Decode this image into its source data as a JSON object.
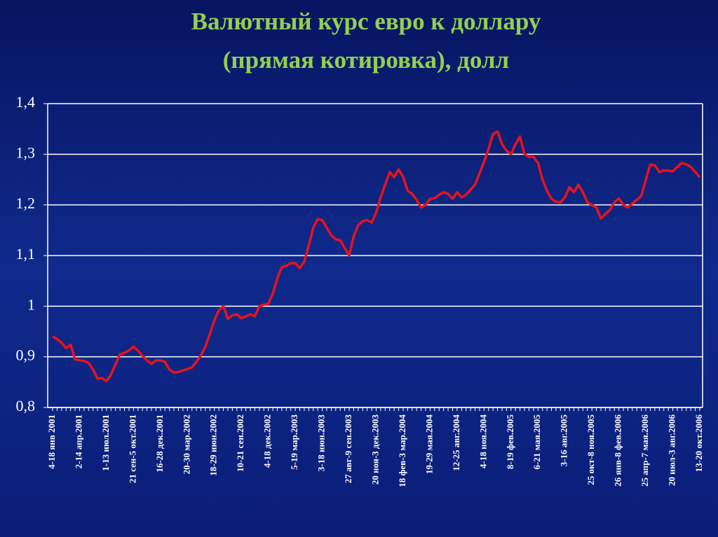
{
  "chart_data": {
    "type": "line",
    "title": "Валютный курс евро к доллару",
    "subtitle": "(прямая котировка), долл",
    "categories": [
      "4-18 янв 2001",
      null,
      null,
      null,
      null,
      null,
      "2-14 апр.2001",
      null,
      null,
      null,
      null,
      null,
      "1-13 июл.2001",
      null,
      null,
      null,
      null,
      null,
      "21 сен-5 окт.2001",
      null,
      null,
      null,
      null,
      null,
      "16-28 дек.2001",
      null,
      null,
      null,
      null,
      null,
      "20-30 мар.2002",
      null,
      null,
      null,
      null,
      null,
      "18-29 июн.2002",
      null,
      null,
      null,
      null,
      null,
      "10-21 сен.2002",
      null,
      null,
      null,
      null,
      null,
      "4-18 дек.2002",
      null,
      null,
      null,
      null,
      null,
      "5-19 мар.2003",
      null,
      null,
      null,
      null,
      null,
      "3-18 июн.2003",
      null,
      null,
      null,
      null,
      null,
      "27 авг-9 сен.2003",
      null,
      null,
      null,
      null,
      null,
      "20 ноя-3 дек.2003",
      null,
      null,
      null,
      null,
      null,
      "18 фев-3 мар.2004",
      null,
      null,
      null,
      null,
      null,
      "19-29 мая.2004",
      null,
      null,
      null,
      null,
      null,
      "12-25 авг.2004",
      null,
      null,
      null,
      null,
      null,
      "4-18 ноя.2004",
      null,
      null,
      null,
      null,
      null,
      "8-19 фев.2005",
      null,
      null,
      null,
      null,
      null,
      "6-21 мая.2005",
      null,
      null,
      null,
      null,
      null,
      "3-16 авг.2005",
      null,
      null,
      null,
      null,
      null,
      "25 окт-8 ноя.2005",
      null,
      null,
      null,
      null,
      null,
      "26 янв-8 фев.2006",
      null,
      null,
      null,
      null,
      null,
      "25 апр-7 мая.2006",
      null,
      null,
      null,
      null,
      null,
      "20 июл-3 авг.2006",
      null,
      null,
      null,
      null,
      null,
      "13-20 окт.2006"
    ],
    "series": [
      {
        "color": "#e8121c",
        "values": [
          0.94,
          0.935,
          0.928,
          0.917,
          0.924,
          0.895,
          0.893,
          0.892,
          0.888,
          0.875,
          0.857,
          0.858,
          0.852,
          0.865,
          0.885,
          0.905,
          0.908,
          0.913,
          0.92,
          0.912,
          0.902,
          0.893,
          0.886,
          0.893,
          0.893,
          0.89,
          0.875,
          0.869,
          0.87,
          0.873,
          0.876,
          0.879,
          0.89,
          0.903,
          0.92,
          0.945,
          0.972,
          0.992,
          1.0,
          0.975,
          0.982,
          0.984,
          0.976,
          0.98,
          0.984,
          0.98,
          1.0,
          1.003,
          1.005,
          1.025,
          1.055,
          1.077,
          1.08,
          1.085,
          1.085,
          1.075,
          1.088,
          1.12,
          1.155,
          1.172,
          1.17,
          1.155,
          1.14,
          1.132,
          1.13,
          1.115,
          1.1,
          1.138,
          1.16,
          1.168,
          1.17,
          1.165,
          1.185,
          1.215,
          1.24,
          1.265,
          1.255,
          1.27,
          1.255,
          1.228,
          1.222,
          1.21,
          1.195,
          1.2,
          1.212,
          1.213,
          1.22,
          1.225,
          1.222,
          1.212,
          1.225,
          1.215,
          1.22,
          1.23,
          1.24,
          1.262,
          1.285,
          1.31,
          1.34,
          1.345,
          1.32,
          1.307,
          1.3,
          1.32,
          1.335,
          1.3,
          1.295,
          1.295,
          1.283,
          1.25,
          1.228,
          1.212,
          1.206,
          1.205,
          1.215,
          1.235,
          1.225,
          1.24,
          1.225,
          1.205,
          1.2,
          1.195,
          1.173,
          1.182,
          1.19,
          1.205,
          1.213,
          1.2,
          1.195,
          1.203,
          1.21,
          1.218,
          1.25,
          1.28,
          1.278,
          1.265,
          1.268,
          1.268,
          1.266,
          1.275,
          1.283,
          1.28,
          1.275,
          1.265,
          1.255
        ]
      }
    ],
    "ylim": [
      0.8,
      1.4
    ],
    "yticks": [
      {
        "value": 0.8,
        "label": "0,8"
      },
      {
        "value": 0.9,
        "label": "0,9"
      },
      1,
      {
        "value": 1.1,
        "label": "1,1"
      },
      {
        "value": 1.2,
        "label": "1,2"
      },
      {
        "value": 1.3,
        "label": "1,3"
      },
      {
        "value": 1.4,
        "label": "1,4"
      }
    ],
    "grid": true
  }
}
